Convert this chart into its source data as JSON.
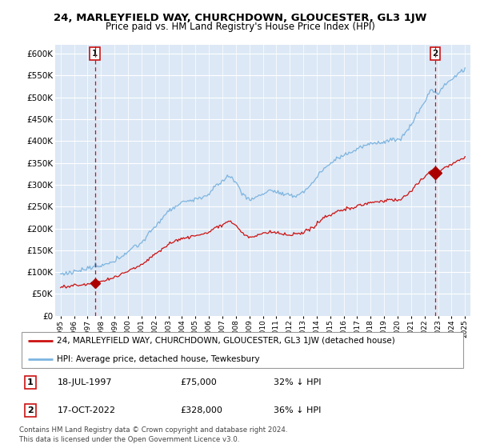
{
  "title": "24, MARLEYFIELD WAY, CHURCHDOWN, GLOUCESTER, GL3 1JW",
  "subtitle": "Price paid vs. HM Land Registry's House Price Index (HPI)",
  "ylim": [
    0,
    620000
  ],
  "yticks": [
    0,
    50000,
    100000,
    150000,
    200000,
    250000,
    300000,
    350000,
    400000,
    450000,
    500000,
    550000,
    600000
  ],
  "ytick_labels": [
    "£0",
    "£50K",
    "£100K",
    "£150K",
    "£200K",
    "£250K",
    "£300K",
    "£350K",
    "£400K",
    "£450K",
    "£500K",
    "£550K",
    "£600K"
  ],
  "xlim_start": 1994.6,
  "xlim_end": 2025.4,
  "bg_color": "#dce8f5",
  "fig_bg": "#ffffff",
  "grid_color": "#ffffff",
  "hpi_color": "#7db4e0",
  "price_color": "#cc1111",
  "sale1_date": 1997.54,
  "sale1_price": 75000,
  "sale2_date": 2022.79,
  "sale2_price": 328000,
  "marker_color": "#aa0000",
  "vline_color": "#cc1111",
  "box_edge_color": "#cc1111",
  "legend_property": "24, MARLEYFIELD WAY, CHURCHDOWN, GLOUCESTER, GL3 1JW (detached house)",
  "legend_hpi": "HPI: Average price, detached house, Tewkesbury",
  "annotation1": "18-JUL-1997",
  "annotation1_price": "£75,000",
  "annotation1_hpi": "32% ↓ HPI",
  "annotation2": "17-OCT-2022",
  "annotation2_price": "£328,000",
  "annotation2_hpi": "36% ↓ HPI",
  "footer": "Contains HM Land Registry data © Crown copyright and database right 2024.\nThis data is licensed under the Open Government Licence v3.0."
}
